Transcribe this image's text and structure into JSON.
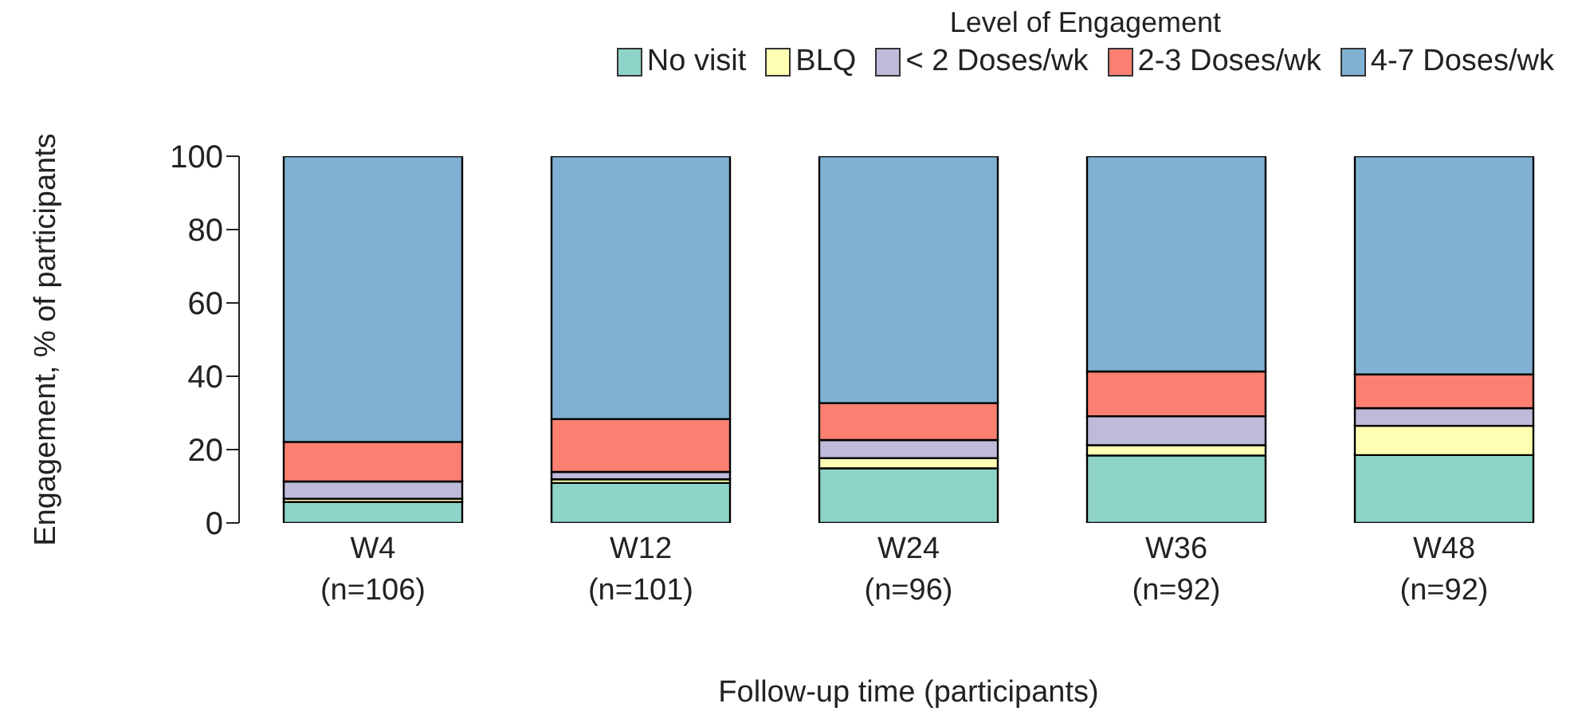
{
  "chart_data": {
    "type": "bar",
    "stacked": true,
    "xlabel": "Follow-up time (participants)",
    "ylabel": "Engagement, % of participants",
    "legend_title": "Level of Engagement",
    "legend": "top right",
    "grid": false,
    "categories": [
      "W4\n(n=106)",
      "W12\n(n=101)",
      "W24\n(n=96)",
      "W36\n(n=92)",
      "W48\n(n=92)"
    ],
    "ylim": [
      0,
      100
    ],
    "yticks": [
      0,
      20,
      40,
      60,
      80,
      100
    ],
    "series": [
      {
        "name": "No visit",
        "color": "#8dd3c7",
        "values": [
          5.7,
          10.9,
          14.9,
          18.4,
          18.5
        ]
      },
      {
        "name": "BLQ",
        "color": "#ffffb3",
        "values": [
          0.9,
          1.0,
          2.8,
          2.8,
          8.0
        ]
      },
      {
        "name": "< 2 Doses/wk",
        "color": "#bebada",
        "values": [
          4.7,
          2.0,
          4.9,
          7.9,
          4.8
        ]
      },
      {
        "name": "2-3 Doses/wk",
        "color": "#fb8072",
        "values": [
          10.8,
          14.4,
          10.1,
          12.2,
          9.2
        ]
      },
      {
        "name": "4-7 Doses/wk",
        "color": "#80b1d3",
        "values": [
          77.9,
          71.7,
          67.3,
          58.7,
          59.5
        ]
      }
    ]
  }
}
